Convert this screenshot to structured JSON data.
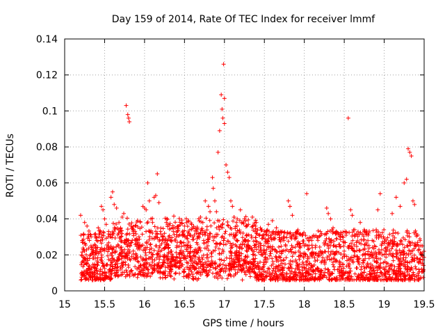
{
  "chart_data": {
    "type": "scatter",
    "title": "Day 159 of 2014, Rate Of TEC Index for receiver lmmf",
    "xlabel": "GPS time / hours",
    "ylabel": "ROTI / TECUs",
    "xlim": [
      15,
      19.5
    ],
    "ylim": [
      0,
      0.14
    ],
    "grid": true,
    "marker": "+",
    "color": "#ff0000",
    "xticks": [
      15,
      15.5,
      16,
      16.5,
      17,
      17.5,
      18,
      18.5,
      19,
      19.5
    ],
    "xtick_labels": [
      "15",
      "15.5",
      "16",
      "16.5",
      "17",
      "17.5",
      "18",
      "18.5",
      "19",
      "19.5"
    ],
    "yticks": [
      0,
      0.02,
      0.04,
      0.06,
      0.08,
      0.1,
      0.12,
      0.14
    ],
    "ytick_labels": [
      "0",
      "0.02",
      "0.04",
      "0.06",
      "0.08",
      "0.1",
      "0.12",
      "0.14"
    ],
    "series": [
      {
        "name": "ROTI",
        "points": [
          [
            15.2,
            0.042
          ],
          [
            15.22,
            0.028
          ],
          [
            15.25,
            0.038
          ],
          [
            15.28,
            0.036
          ],
          [
            15.3,
            0.03
          ],
          [
            15.33,
            0.025
          ],
          [
            15.36,
            0.022
          ],
          [
            15.38,
            0.02
          ],
          [
            15.4,
            0.028
          ],
          [
            15.42,
            0.035
          ],
          [
            15.44,
            0.032
          ],
          [
            15.46,
            0.047
          ],
          [
            15.48,
            0.045
          ],
          [
            15.5,
            0.04
          ],
          [
            15.52,
            0.037
          ],
          [
            15.55,
            0.033
          ],
          [
            15.58,
            0.052
          ],
          [
            15.6,
            0.055
          ],
          [
            15.62,
            0.048
          ],
          [
            15.65,
            0.046
          ],
          [
            15.68,
            0.038
          ],
          [
            15.7,
            0.035
          ],
          [
            15.72,
            0.041
          ],
          [
            15.74,
            0.043
          ],
          [
            15.77,
            0.103
          ],
          [
            15.79,
            0.098
          ],
          [
            15.8,
            0.096
          ],
          [
            15.81,
            0.094
          ],
          [
            15.83,
            0.036
          ],
          [
            15.86,
            0.032
          ],
          [
            15.9,
            0.028
          ],
          [
            15.93,
            0.03
          ],
          [
            15.96,
            0.025
          ],
          [
            15.98,
            0.047
          ],
          [
            16.0,
            0.046
          ],
          [
            16.02,
            0.045
          ],
          [
            16.04,
            0.06
          ],
          [
            16.06,
            0.05
          ],
          [
            16.08,
            0.04
          ],
          [
            16.1,
            0.038
          ],
          [
            16.12,
            0.052
          ],
          [
            16.14,
            0.053
          ],
          [
            16.16,
            0.065
          ],
          [
            16.18,
            0.049
          ],
          [
            16.2,
            0.033
          ],
          [
            16.22,
            0.03
          ],
          [
            16.25,
            0.032
          ],
          [
            16.28,
            0.026
          ],
          [
            16.3,
            0.024
          ],
          [
            16.33,
            0.028
          ],
          [
            16.36,
            0.033
          ],
          [
            16.4,
            0.03
          ],
          [
            16.45,
            0.027
          ],
          [
            16.5,
            0.036
          ],
          [
            16.55,
            0.039
          ],
          [
            16.6,
            0.035
          ],
          [
            16.65,
            0.032
          ],
          [
            16.7,
            0.041
          ],
          [
            16.73,
            0.038
          ],
          [
            16.76,
            0.05
          ],
          [
            16.8,
            0.047
          ],
          [
            16.82,
            0.044
          ],
          [
            16.85,
            0.063
          ],
          [
            16.86,
            0.057
          ],
          [
            16.88,
            0.05
          ],
          [
            16.9,
            0.044
          ],
          [
            16.92,
            0.077
          ],
          [
            16.94,
            0.089
          ],
          [
            16.96,
            0.109
          ],
          [
            16.97,
            0.101
          ],
          [
            16.98,
            0.096
          ],
          [
            16.99,
            0.126
          ],
          [
            17.0,
            0.107
          ],
          [
            17.0,
            0.093
          ],
          [
            17.02,
            0.07
          ],
          [
            17.04,
            0.066
          ],
          [
            17.06,
            0.063
          ],
          [
            17.08,
            0.05
          ],
          [
            17.1,
            0.047
          ],
          [
            17.12,
            0.041
          ],
          [
            17.15,
            0.038
          ],
          [
            17.2,
            0.045
          ],
          [
            17.25,
            0.04
          ],
          [
            17.3,
            0.037
          ],
          [
            17.35,
            0.041
          ],
          [
            17.4,
            0.038
          ],
          [
            17.45,
            0.035
          ],
          [
            17.5,
            0.033
          ],
          [
            17.55,
            0.037
          ],
          [
            17.6,
            0.039
          ],
          [
            17.65,
            0.035
          ],
          [
            17.7,
            0.033
          ],
          [
            17.75,
            0.03
          ],
          [
            17.8,
            0.05
          ],
          [
            17.82,
            0.047
          ],
          [
            17.85,
            0.042
          ],
          [
            17.9,
            0.03
          ],
          [
            17.95,
            0.025
          ],
          [
            18.0,
            0.025
          ],
          [
            18.03,
            0.054
          ],
          [
            18.1,
            0.024
          ],
          [
            18.2,
            0.022
          ],
          [
            18.28,
            0.046
          ],
          [
            18.3,
            0.043
          ],
          [
            18.33,
            0.04
          ],
          [
            18.36,
            0.035
          ],
          [
            18.4,
            0.033
          ],
          [
            18.45,
            0.03
          ],
          [
            18.5,
            0.027
          ],
          [
            18.55,
            0.096
          ],
          [
            18.58,
            0.045
          ],
          [
            18.6,
            0.042
          ],
          [
            18.63,
            0.034
          ],
          [
            18.7,
            0.038
          ],
          [
            18.75,
            0.034
          ],
          [
            18.8,
            0.031
          ],
          [
            18.85,
            0.028
          ],
          [
            18.9,
            0.034
          ],
          [
            18.92,
            0.045
          ],
          [
            18.95,
            0.054
          ],
          [
            19.0,
            0.029
          ],
          [
            19.05,
            0.026
          ],
          [
            19.1,
            0.043
          ],
          [
            19.15,
            0.052
          ],
          [
            19.2,
            0.047
          ],
          [
            19.25,
            0.06
          ],
          [
            19.28,
            0.062
          ],
          [
            19.3,
            0.079
          ],
          [
            19.32,
            0.077
          ],
          [
            19.34,
            0.075
          ],
          [
            19.36,
            0.05
          ],
          [
            19.38,
            0.048
          ],
          [
            19.4,
            0.032
          ],
          [
            19.42,
            0.031
          ],
          [
            19.45,
            0.028
          ],
          [
            19.48,
            0.025
          ]
        ]
      }
    ]
  }
}
